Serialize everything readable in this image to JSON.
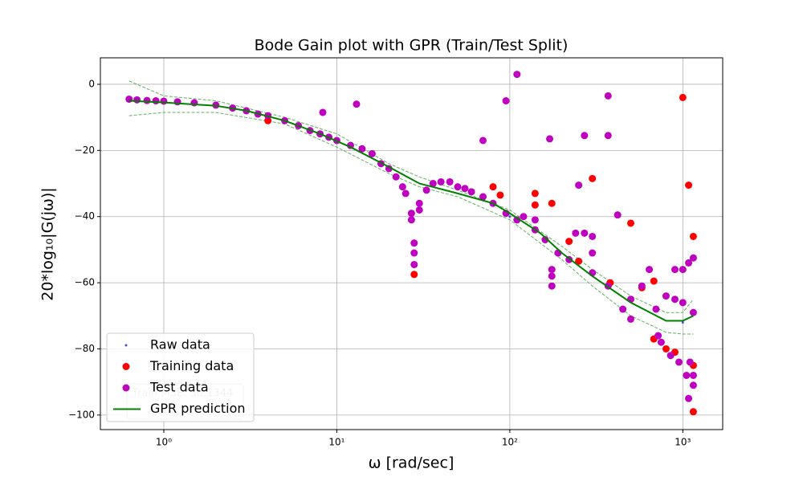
{
  "chart_data": {
    "type": "scatter",
    "title": "Bode Gain plot with GPR (Train/Test Split)",
    "x_label": "ω [rad/sec]",
    "y_label": "20*log₁₀|G(jω)|",
    "x_scale": "log",
    "xlim": [
      0.43,
      1700
    ],
    "ylim": [
      -104.4,
      8
    ],
    "xticks": [
      {
        "value": 1,
        "label": "10⁰"
      },
      {
        "value": 10,
        "label": "10¹"
      },
      {
        "value": 100,
        "label": "10²"
      },
      {
        "value": 1000,
        "label": "10³"
      }
    ],
    "yticks": [
      {
        "value": -100,
        "label": "−100"
      },
      {
        "value": -80,
        "label": "−80"
      },
      {
        "value": -60,
        "label": "−60"
      },
      {
        "value": -40,
        "label": "−40"
      },
      {
        "value": -20,
        "label": "−20"
      },
      0
    ],
    "grid": true,
    "legend": "lower left",
    "annotation": "Train MSE: 30.1344",
    "series": [
      {
        "name": "Raw data",
        "kind": "scatter",
        "marker": "dot",
        "color": "#4a4ae0",
        "x": [
          0.63,
          1,
          2,
          3,
          5,
          8,
          10,
          20,
          50,
          100,
          300,
          1000
        ],
        "values": [
          -4.5,
          -5.1,
          -6.3,
          -8,
          -11,
          -15,
          -17,
          -25.5,
          -31,
          -40,
          -57,
          -72
        ]
      },
      {
        "name": "Training data",
        "kind": "scatter",
        "marker": "circle",
        "color": "#ff0000",
        "x": [
          4,
          28,
          80,
          88,
          140,
          140,
          175,
          220,
          250,
          300,
          380,
          500,
          580,
          680,
          680,
          800,
          1000,
          1080,
          1150,
          1150,
          1150,
          900
        ],
        "values": [
          -11,
          -57.5,
          -31,
          -33.5,
          -33,
          -36.5,
          -36,
          -47.5,
          -53.5,
          -28.5,
          -60,
          -42,
          -61.5,
          -59.5,
          -77,
          -80,
          -4,
          -30.5,
          -46,
          -99,
          -85,
          -81
        ]
      },
      {
        "name": "Test data",
        "kind": "scatter",
        "marker": "circle",
        "color": "#c000c0",
        "x": [
          0.63,
          0.7,
          0.8,
          0.9,
          1,
          1.2,
          1.5,
          2,
          2.5,
          3,
          3.5,
          4,
          5,
          6,
          7,
          8,
          8.3,
          9,
          10,
          12,
          13,
          14,
          16,
          18,
          20,
          22,
          24,
          25,
          27,
          27,
          28,
          28,
          28,
          30,
          30,
          33,
          36,
          40,
          45,
          50,
          55,
          60,
          70,
          70,
          80,
          95,
          95,
          110,
          110,
          120,
          140,
          140,
          160,
          170,
          175,
          175,
          175,
          190,
          220,
          240,
          250,
          270,
          270,
          300,
          300,
          300,
          370,
          370,
          370,
          420,
          450,
          500,
          500,
          580,
          640,
          700,
          720,
          750,
          800,
          850,
          900,
          900,
          950,
          1000,
          1000,
          1050,
          1080,
          1080,
          1100,
          1150,
          1150,
          1150,
          1150
        ],
        "values": [
          -4.5,
          -4.7,
          -4.9,
          -5,
          -5.1,
          -5.3,
          -5.6,
          -6.3,
          -7.2,
          -8,
          -9,
          -9.5,
          -11,
          -12.5,
          -14,
          -15,
          -8.5,
          -16,
          -17,
          -18.5,
          -6,
          -19.5,
          -21,
          -24,
          -25.5,
          -28,
          -31,
          -33,
          -39,
          -41,
          -48,
          -51,
          -54.5,
          -36,
          -38,
          -32,
          -30,
          -29.5,
          -29.5,
          -31,
          -31.5,
          -32.5,
          -17,
          -34,
          -36,
          -5,
          -39,
          3,
          -41,
          -40,
          -41,
          -44,
          -47,
          -16.5,
          -56,
          -58,
          -61,
          -51,
          -53,
          -45,
          -30.5,
          -15.5,
          -45,
          -46,
          -51,
          -57,
          -3.5,
          -15.5,
          -61,
          -39.5,
          -68,
          -71,
          -65,
          -61,
          -56,
          -68,
          -76,
          -78,
          -64,
          -82,
          -56,
          -65,
          -84,
          -56,
          -66,
          -88,
          -54,
          -95,
          -84,
          -52.5,
          -69,
          -91,
          -88
        ]
      },
      {
        "name": "GPR prediction",
        "kind": "line",
        "color": "#008000",
        "x": [
          0.63,
          1,
          2,
          3,
          5,
          8,
          12,
          20,
          30,
          50,
          80,
          100,
          150,
          200,
          300,
          500,
          800,
          1000,
          1150
        ],
        "values": [
          -5,
          -5.5,
          -6.5,
          -8,
          -11,
          -15,
          -19,
          -25,
          -30,
          -33,
          -36,
          -39,
          -45,
          -51,
          -58,
          -66,
          -71.5,
          -71.5,
          -70
        ]
      }
    ],
    "confidence_band": {
      "color": "#60b060",
      "x": [
        0.63,
        1,
        2,
        5,
        10,
        20,
        30,
        50,
        100,
        200,
        300,
        500,
        800,
        1000,
        1150
      ],
      "upper": [
        1,
        -3.5,
        -5,
        -10,
        -15,
        -24,
        -28,
        -32,
        -38,
        -49,
        -56,
        -64,
        -69,
        -69,
        -65
      ],
      "lower": [
        -9.5,
        -8.5,
        -8.5,
        -12,
        -19,
        -27,
        -31,
        -34,
        -41,
        -53,
        -61,
        -70,
        -75,
        -75.5,
        -75.5
      ]
    }
  }
}
